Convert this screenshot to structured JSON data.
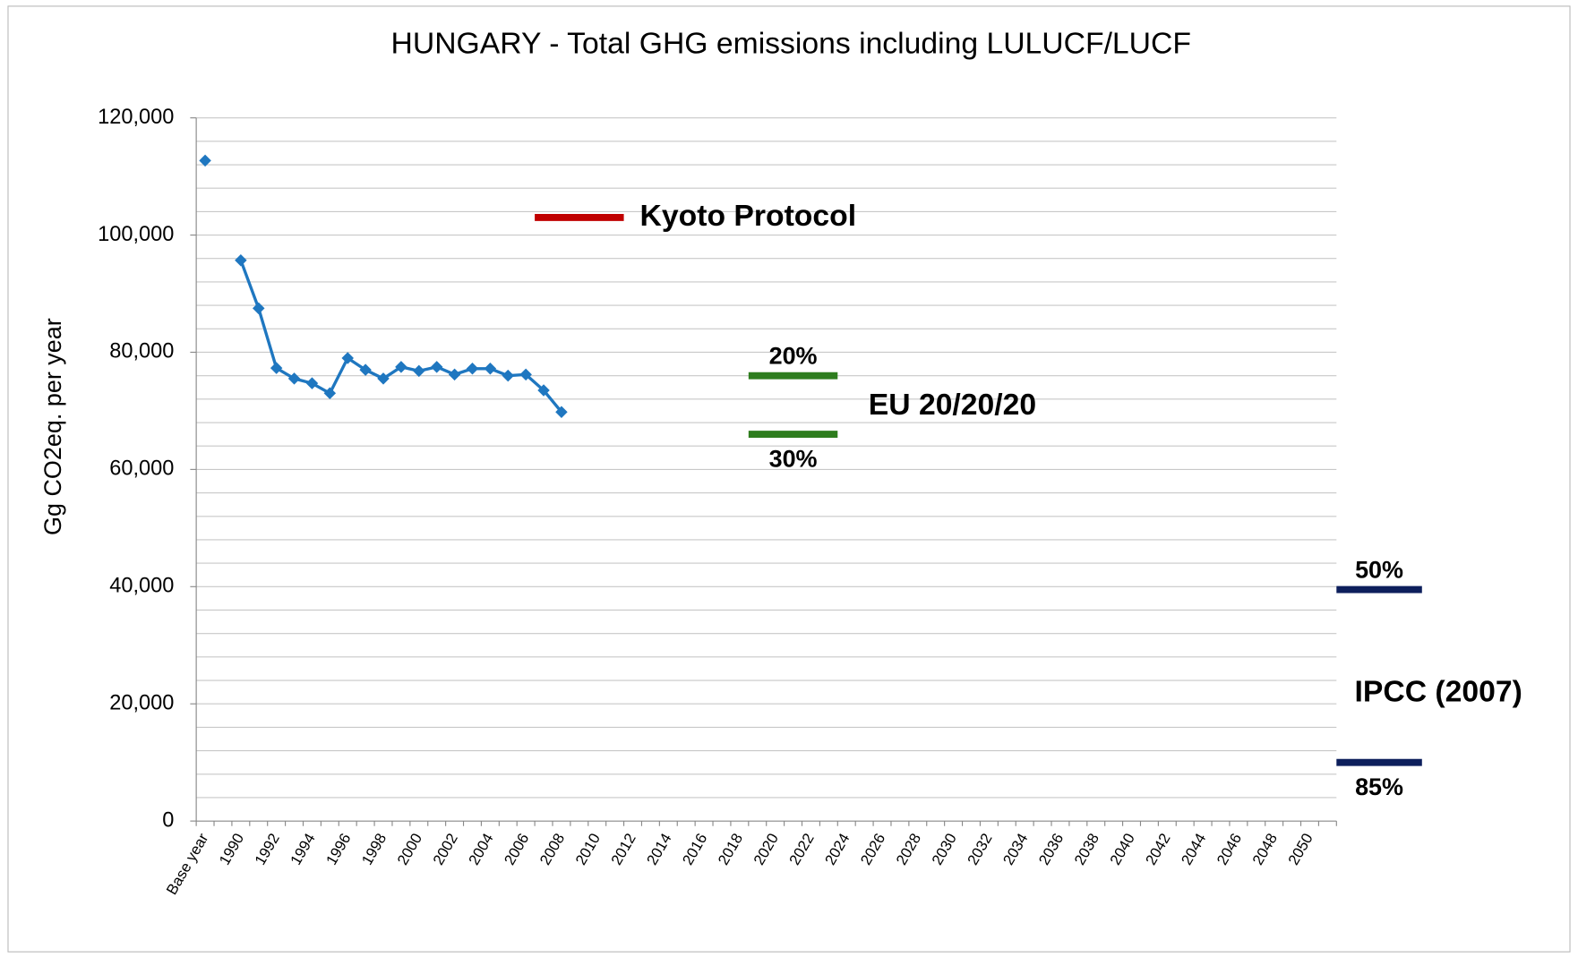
{
  "chart_data": {
    "type": "line",
    "title": "HUNGARY - Total GHG emissions including LULUCF/LUCF",
    "y_label": "Gg CO2eq. per year",
    "categories": [
      "Base year",
      null,
      "1990",
      null,
      "1992",
      null,
      "1994",
      null,
      "1996",
      null,
      "1998",
      null,
      "2000",
      null,
      "2002",
      null,
      "2004",
      null,
      "2006",
      null,
      "2008",
      null,
      "2010",
      null,
      "2012",
      null,
      "2014",
      null,
      "2016",
      null,
      "2018",
      null,
      "2020",
      null,
      "2022",
      null,
      "2024",
      null,
      "2026",
      null,
      "2028",
      null,
      "2030",
      null,
      "2032",
      null,
      "2034",
      null,
      "2036",
      null,
      "2038",
      null,
      "2040",
      null,
      "2042",
      null,
      "2044",
      null,
      "2046",
      null,
      "2048",
      null,
      "2050",
      null
    ],
    "series": [
      {
        "color": "#1f77c0",
        "values": [
          112700,
          null,
          95700,
          87500,
          77300,
          75500,
          74700,
          73000,
          79000,
          77000,
          75500,
          77500,
          76800,
          77500,
          76200,
          77200,
          77200,
          76000,
          76200,
          73500,
          69800,
          null,
          null,
          null,
          null,
          null,
          null,
          null,
          null,
          null,
          null,
          null,
          null,
          null,
          null,
          null,
          null,
          null,
          null,
          null,
          null,
          null,
          null,
          null,
          null,
          null,
          null,
          null,
          null,
          null,
          null,
          null,
          null,
          null,
          null,
          null,
          null,
          null,
          null,
          null,
          null,
          null,
          null,
          null
        ]
      }
    ],
    "ylim": [
      0,
      120000
    ],
    "yticks": [
      {
        "value": 0,
        "label": "0"
      },
      {
        "value": 20000,
        "label": "20,000"
      },
      {
        "value": 40000,
        "label": "40,000"
      },
      {
        "value": 60000,
        "label": "60,000"
      },
      {
        "value": 80000,
        "label": "80,000"
      },
      {
        "value": 100000,
        "label": "100,000"
      },
      {
        "value": 120000,
        "label": "120,000"
      }
    ],
    "grid_step": 4000,
    "grid": true,
    "targets": [
      {
        "label": "Kyoto Protocol",
        "value": 103000,
        "color": "#c00000"
      },
      {
        "label": "20%",
        "value": 76000,
        "color": "#2e7d1e"
      },
      {
        "label": "30%",
        "value": 66000,
        "color": "#2e7d1e"
      },
      {
        "label": "50%",
        "value": 39500,
        "color": "#0d1f5c"
      },
      {
        "label": "85%",
        "value": 10000,
        "color": "#0d1f5c"
      }
    ],
    "group_labels": [
      "EU 20/20/20",
      "IPCC (2007)"
    ]
  }
}
